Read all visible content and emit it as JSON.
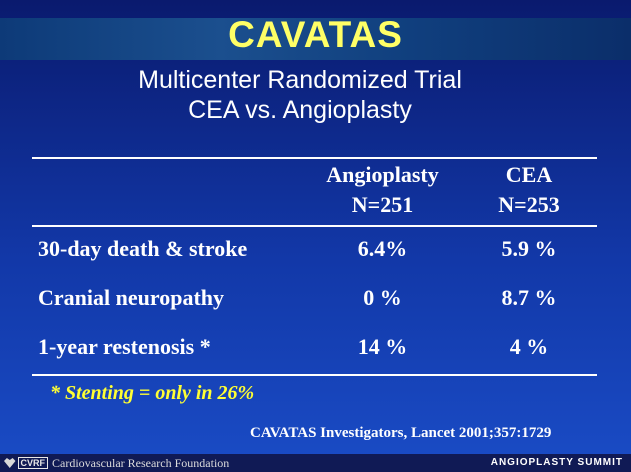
{
  "slide": {
    "title": "CAVATAS",
    "subtitle_line1": "Multicenter Randomized Trial",
    "subtitle_line2": "CEA vs. Angioplasty"
  },
  "table": {
    "columns": [
      {
        "name": "Angioplasty",
        "n": "N=251"
      },
      {
        "name": "CEA",
        "n": "N=253"
      }
    ],
    "rows": [
      {
        "label": "30-day death & stroke",
        "angioplasty": "6.4%",
        "cea": "5.9 %"
      },
      {
        "label": "Cranial neuropathy",
        "angioplasty": "0 %",
        "cea": "8.7 %"
      },
      {
        "label": "1-year restenosis *",
        "angioplasty": "14 %",
        "cea": "4 %"
      }
    ]
  },
  "footnote": "* Stenting = only in 26%",
  "citation": "CAVATAS Investigators, Lancet 2001;357:1729",
  "footer": {
    "logo_text": "CVRF",
    "organization": "Cardiovascular Research Foundation",
    "event": "ANGIOPLASTY SUMMIT"
  },
  "colors": {
    "background": "#1238a8",
    "title": "#ffff66",
    "footnote": "#ffff33",
    "text": "#ffffff"
  }
}
